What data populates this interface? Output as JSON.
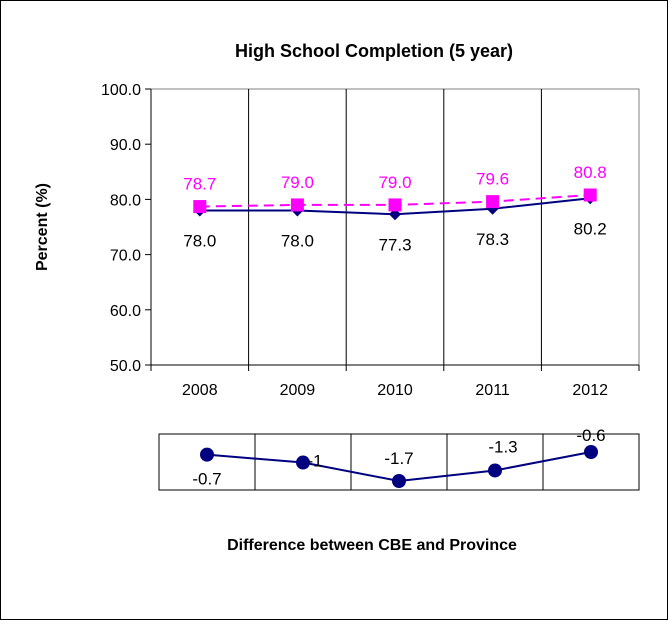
{
  "chart_data": [
    {
      "type": "line",
      "title": "High School Completion (5 year)",
      "ylabel": "Percent (%)",
      "xlabel": "",
      "categories": [
        "2008",
        "2009",
        "2010",
        "2011",
        "2012"
      ],
      "ylim": [
        50.0,
        100.0
      ],
      "yticks": [
        "50.0",
        "60.0",
        "70.0",
        "80.0",
        "90.0",
        "100.0"
      ],
      "grid": "vertical",
      "series": [
        {
          "values": [
            78.0,
            78.0,
            77.3,
            78.3,
            80.2
          ],
          "labels": [
            "78.0",
            "78.0",
            "77.3",
            "78.3",
            "80.2"
          ],
          "color": "#000080",
          "marker": "diamond",
          "style": "solid"
        },
        {
          "values": [
            78.7,
            79.0,
            79.0,
            79.6,
            80.8
          ],
          "labels": [
            "78.7",
            "79.0",
            "79.0",
            "79.6",
            "80.8"
          ],
          "color": "#ff00ff",
          "marker": "square",
          "style": "dashed"
        }
      ]
    },
    {
      "type": "line",
      "title": "Difference between CBE and Province",
      "categories": [
        "2008",
        "2009",
        "2010",
        "2011",
        "2012"
      ],
      "series": [
        {
          "values": [
            -0.7,
            -1.0,
            -1.7,
            -1.3,
            -0.6
          ],
          "labels": [
            "-0.7",
            "-1",
            "-1.7",
            "-1.3",
            "-0.6"
          ],
          "color": "#000080",
          "marker": "circle"
        }
      ]
    }
  ]
}
